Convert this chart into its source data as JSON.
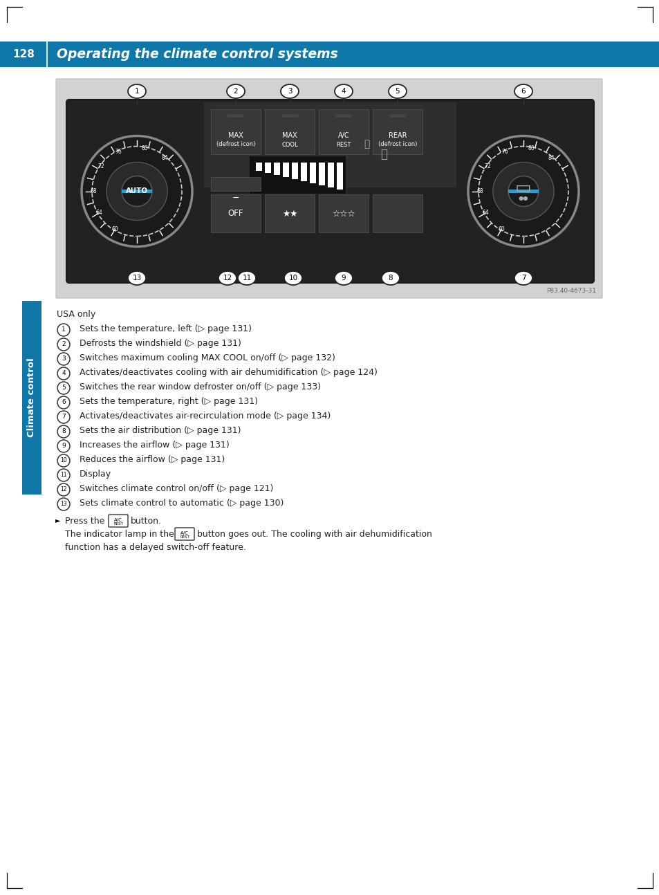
{
  "page_number": "128",
  "header_title": "Operating the climate control systems",
  "header_bg": "#1078a8",
  "header_text_color": "#ffffff",
  "page_bg": "#ffffff",
  "sidebar_label": "Climate control",
  "sidebar_color": "#1078a8",
  "ref_code": "P83.40-4673-31",
  "usa_only": "USA only",
  "items": [
    {
      "num": 1,
      "text": "Sets the temperature, left (▷ page 131)"
    },
    {
      "num": 2,
      "text": "Defrosts the windshield (▷ page 131)"
    },
    {
      "num": 3,
      "text": "Switches maximum cooling MAX COOL on/off (▷ page 132)"
    },
    {
      "num": 4,
      "text": "Activates/deactivates cooling with air dehumidification (▷ page 124)"
    },
    {
      "num": 5,
      "text": "Switches the rear window defroster on/off (▷ page 133)"
    },
    {
      "num": 6,
      "text": "Sets the temperature, right (▷ page 131)"
    },
    {
      "num": 7,
      "text": "Activates/deactivates air-recirculation mode (▷ page 134)"
    },
    {
      "num": 8,
      "text": "Sets the air distribution (▷ page 131)"
    },
    {
      "num": 9,
      "text": "Increases the airflow (▷ page 131)"
    },
    {
      "num": 10,
      "text": "Reduces the airflow (▷ page 131)"
    },
    {
      "num": 11,
      "text": "Display"
    },
    {
      "num": 12,
      "text": "Switches climate control on/off (▷ page 121)"
    },
    {
      "num": 13,
      "text": "Sets climate control to automatic (▷ page 130)"
    }
  ],
  "corner_color": "#000000"
}
